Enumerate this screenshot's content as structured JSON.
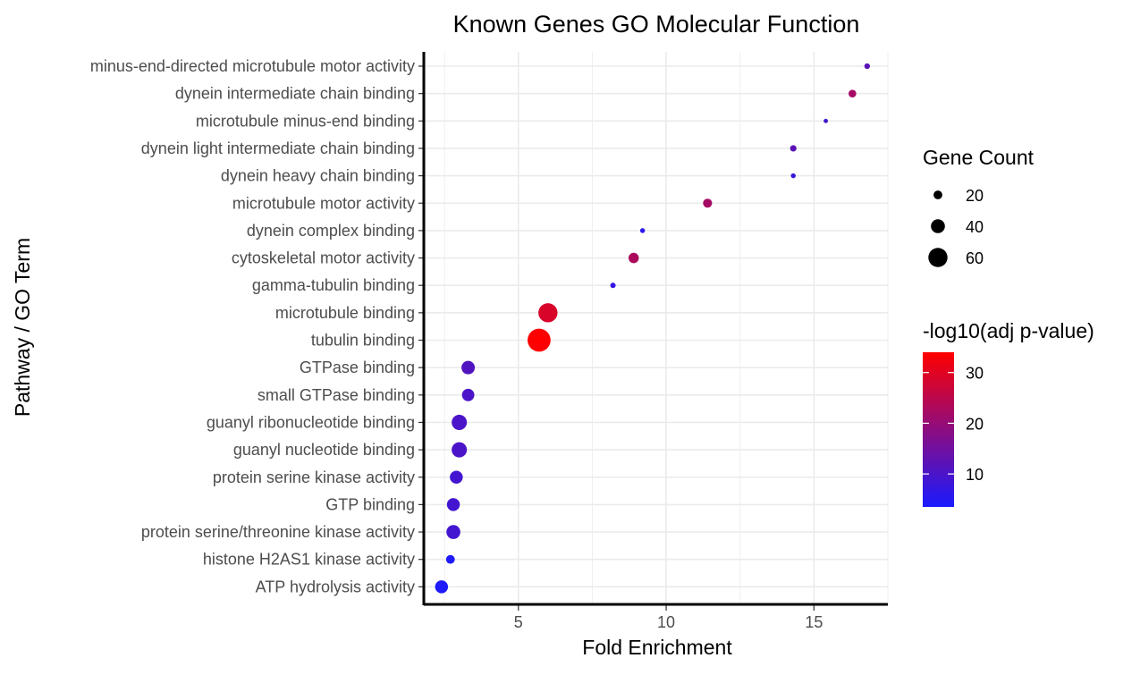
{
  "chart_data": {
    "type": "scatter",
    "title": "Known Genes GO Molecular Function",
    "xlabel": "Fold Enrichment",
    "ylabel": "Pathway / GO Term",
    "xlim": [
      1.8,
      17.5
    ],
    "x_ticks": [
      5,
      10,
      15
    ],
    "grid": true,
    "categories": [
      "minus-end-directed microtubule motor activity",
      "dynein intermediate chain binding",
      "microtubule minus-end binding",
      "dynein light intermediate chain binding",
      "dynein heavy chain binding",
      "microtubule motor activity",
      "dynein complex binding",
      "cytoskeletal motor activity",
      "gamma-tubulin binding",
      "microtubule binding",
      "tubulin binding",
      "GTPase binding",
      "small GTPase binding",
      "guanyl ribonucleotide binding",
      "guanyl nucleotide binding",
      "protein serine kinase activity",
      "GTP binding",
      "protein serine/threonine kinase activity",
      "histone H2AS1 kinase activity",
      "ATP hydrolysis activity"
    ],
    "points": [
      {
        "term": "minus-end-directed microtubule motor activity",
        "fold_enrichment": 16.8,
        "gene_count": 8,
        "neg_log10_padj": 12
      },
      {
        "term": "dynein intermediate chain binding",
        "fold_enrichment": 16.3,
        "gene_count": 16,
        "neg_log10_padj": 22
      },
      {
        "term": "microtubule minus-end binding",
        "fold_enrichment": 15.4,
        "gene_count": 3,
        "neg_log10_padj": 9
      },
      {
        "term": "dynein light intermediate chain binding",
        "fold_enrichment": 14.3,
        "gene_count": 11,
        "neg_log10_padj": 12
      },
      {
        "term": "dynein heavy chain binding",
        "fold_enrichment": 14.3,
        "gene_count": 5,
        "neg_log10_padj": 8
      },
      {
        "term": "microtubule motor activity",
        "fold_enrichment": 11.4,
        "gene_count": 21,
        "neg_log10_padj": 22
      },
      {
        "term": "dynein complex binding",
        "fold_enrichment": 9.2,
        "gene_count": 5,
        "neg_log10_padj": 6
      },
      {
        "term": "cytoskeletal motor activity",
        "fold_enrichment": 8.9,
        "gene_count": 26,
        "neg_log10_padj": 23
      },
      {
        "term": "gamma-tubulin binding",
        "fold_enrichment": 8.2,
        "gene_count": 7,
        "neg_log10_padj": 7
      },
      {
        "term": "microtubule binding",
        "fold_enrichment": 6.0,
        "gene_count": 60,
        "neg_log10_padj": 29
      },
      {
        "term": "tubulin binding",
        "fold_enrichment": 5.7,
        "gene_count": 75,
        "neg_log10_padj": 34
      },
      {
        "term": "GTPase binding",
        "fold_enrichment": 3.3,
        "gene_count": 38,
        "neg_log10_padj": 11
      },
      {
        "term": "small GTPase binding",
        "fold_enrichment": 3.3,
        "gene_count": 34,
        "neg_log10_padj": 10
      },
      {
        "term": "guanyl ribonucleotide binding",
        "fold_enrichment": 3.0,
        "gene_count": 45,
        "neg_log10_padj": 10
      },
      {
        "term": "guanyl nucleotide binding",
        "fold_enrichment": 3.0,
        "gene_count": 45,
        "neg_log10_padj": 10
      },
      {
        "term": "protein serine kinase activity",
        "fold_enrichment": 2.9,
        "gene_count": 36,
        "neg_log10_padj": 9
      },
      {
        "term": "GTP binding",
        "fold_enrichment": 2.8,
        "gene_count": 36,
        "neg_log10_padj": 9
      },
      {
        "term": "protein serine/threonine kinase activity",
        "fold_enrichment": 2.8,
        "gene_count": 40,
        "neg_log10_padj": 9
      },
      {
        "term": "histone H2AS1 kinase activity",
        "fold_enrichment": 2.7,
        "gene_count": 20,
        "neg_log10_padj": 4
      },
      {
        "term": "ATP hydrolysis activity",
        "fold_enrichment": 2.4,
        "gene_count": 36,
        "neg_log10_padj": 4
      }
    ],
    "size_legend": {
      "title": "Gene Count",
      "entries": [
        {
          "label": "20",
          "value": 20
        },
        {
          "label": "40",
          "value": 40
        },
        {
          "label": "60",
          "value": 60
        }
      ]
    },
    "color_legend": {
      "title": "-log10(adj p-value)",
      "low_color": "#1a1aff",
      "high_color": "#ff0000",
      "range": [
        3.5,
        34
      ],
      "ticks": [
        {
          "label": "10",
          "value": 10
        },
        {
          "label": "20",
          "value": 20
        },
        {
          "label": "30",
          "value": 30
        }
      ]
    }
  }
}
